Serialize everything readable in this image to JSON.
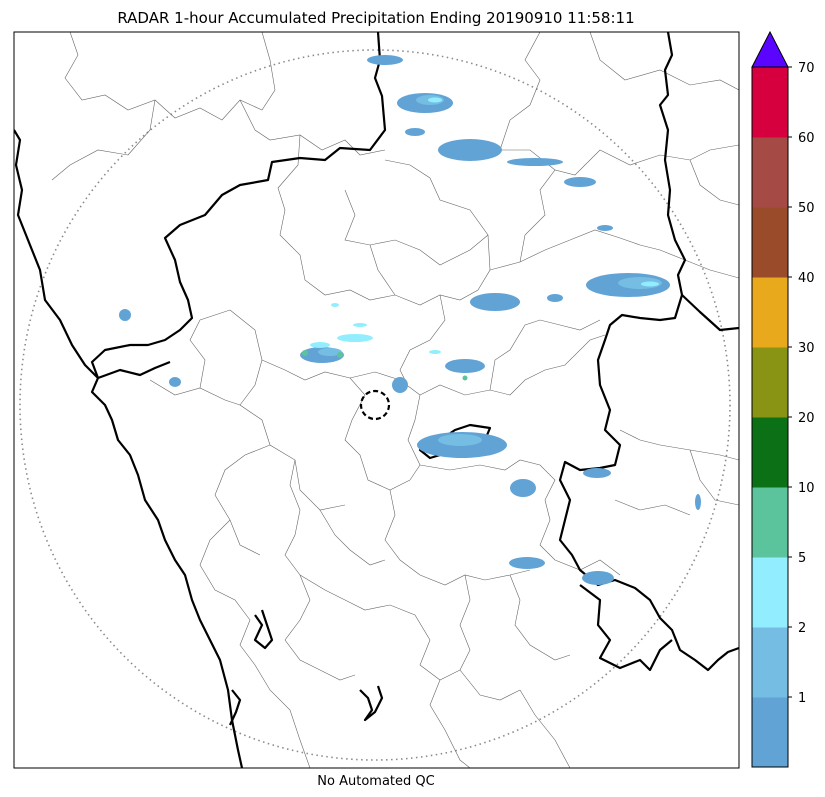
{
  "title": "RADAR 1-hour Accumulated Precipitation Ending 20190910 11:58:11",
  "caption": "No Automated QC",
  "colorbar": {
    "bins": [
      {
        "lower": 0,
        "upper": 1,
        "color": "#62a3d6"
      },
      {
        "lower": 1,
        "upper": 2,
        "color": "#75bde3"
      },
      {
        "lower": 2,
        "upper": 5,
        "color": "#92eefe"
      },
      {
        "lower": 5,
        "upper": 10,
        "color": "#5cc49c"
      },
      {
        "lower": 10,
        "upper": 20,
        "color": "#0c7017"
      },
      {
        "lower": 20,
        "upper": 30,
        "color": "#8a9414"
      },
      {
        "lower": 30,
        "upper": 40,
        "color": "#e9a91c"
      },
      {
        "lower": 40,
        "upper": 50,
        "color": "#9a4b29"
      },
      {
        "lower": 50,
        "upper": 60,
        "color": "#a64a45"
      },
      {
        "lower": 60,
        "upper": 70,
        "color": "#d6003f"
      }
    ],
    "extend_color": "#5a05ff",
    "tick_labels": [
      "1",
      "2",
      "5",
      "10",
      "20",
      "30",
      "40",
      "50",
      "60",
      "70"
    ]
  }
}
